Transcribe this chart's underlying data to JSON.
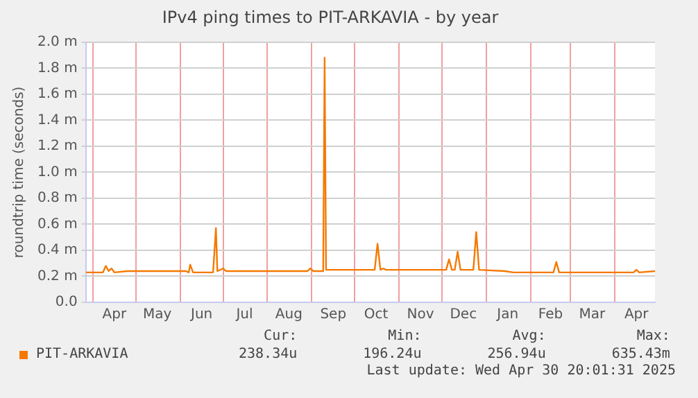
{
  "chart_data": {
    "type": "line",
    "title": "IPv4 ping times to PIT-ARKAVIA - by year",
    "ylabel": "roundtrip time (seconds)",
    "x": [
      "2024-03-27",
      "2024-04-08",
      "2024-04-10",
      "2024-04-12",
      "2024-04-14",
      "2024-04-16",
      "2024-04-25",
      "2024-06-05",
      "2024-06-07",
      "2024-06-08",
      "2024-06-10",
      "2024-06-24",
      "2024-06-26",
      "2024-06-27",
      "2024-07-01",
      "2024-07-03",
      "2024-08-29",
      "2024-08-31",
      "2024-09-02",
      "2024-09-09",
      "2024-09-10",
      "2024-09-11",
      "2024-10-15",
      "2024-10-17",
      "2024-10-19",
      "2024-10-21",
      "2024-10-23",
      "2024-12-04",
      "2024-12-06",
      "2024-12-08",
      "2024-12-10",
      "2024-12-12",
      "2024-12-14",
      "2024-12-23",
      "2024-12-25",
      "2024-12-27",
      "2025-01-14",
      "2025-01-20",
      "2025-02-17",
      "2025-02-19",
      "2025-02-21",
      "2025-04-14",
      "2025-04-16",
      "2025-04-18",
      "2025-04-29"
    ],
    "series": [
      {
        "name": "PIT-ARKAVIA",
        "color": "#f57900",
        "values": [
          0.23,
          0.23,
          0.28,
          0.24,
          0.26,
          0.23,
          0.24,
          0.24,
          0.23,
          0.29,
          0.23,
          0.23,
          0.57,
          0.24,
          0.26,
          0.24,
          0.24,
          0.26,
          0.24,
          0.24,
          1.88,
          0.25,
          0.25,
          0.45,
          0.25,
          0.26,
          0.25,
          0.25,
          0.33,
          0.25,
          0.25,
          0.39,
          0.25,
          0.25,
          0.54,
          0.25,
          0.24,
          0.23,
          0.23,
          0.31,
          0.23,
          0.23,
          0.25,
          0.23,
          0.24
        ]
      }
    ],
    "xlim": [
      "2024-03-27",
      "2025-04-29"
    ],
    "xticks": [
      {
        "value": "2024-04-01",
        "label": null
      },
      {
        "value": "2024-04-16",
        "label": "Apr"
      },
      {
        "value": "2024-05-01",
        "label": null
      },
      {
        "value": "2024-05-16",
        "label": "May"
      },
      {
        "value": "2024-06-01",
        "label": null
      },
      {
        "value": "2024-06-16",
        "label": "Jun"
      },
      {
        "value": "2024-07-01",
        "label": null
      },
      {
        "value": "2024-07-16",
        "label": "Jul"
      },
      {
        "value": "2024-08-01",
        "label": null
      },
      {
        "value": "2024-08-16",
        "label": "Aug"
      },
      {
        "value": "2024-09-01",
        "label": null
      },
      {
        "value": "2024-09-16",
        "label": "Sep"
      },
      {
        "value": "2024-10-01",
        "label": null
      },
      {
        "value": "2024-10-16",
        "label": "Oct"
      },
      {
        "value": "2024-11-01",
        "label": null
      },
      {
        "value": "2024-11-16",
        "label": "Nov"
      },
      {
        "value": "2024-12-01",
        "label": null
      },
      {
        "value": "2024-12-16",
        "label": "Dec"
      },
      {
        "value": "2025-01-01",
        "label": null
      },
      {
        "value": "2025-01-16",
        "label": "Jan"
      },
      {
        "value": "2025-02-01",
        "label": null
      },
      {
        "value": "2025-02-15",
        "label": "Feb"
      },
      {
        "value": "2025-03-01",
        "label": null
      },
      {
        "value": "2025-03-16",
        "label": "Mar"
      },
      {
        "value": "2025-04-01",
        "label": null
      },
      {
        "value": "2025-04-16",
        "label": "Apr"
      }
    ],
    "ylim": [
      0,
      2
    ],
    "yticks": [
      {
        "value": 0,
        "label": "0.0"
      },
      {
        "value": 0.2,
        "label": "0.2 m"
      },
      {
        "value": 0.4,
        "label": "0.4 m"
      },
      {
        "value": 0.6,
        "label": "0.6 m"
      },
      {
        "value": 0.8,
        "label": "0.8 m"
      },
      {
        "value": 1.0,
        "label": "1.0 m"
      },
      {
        "value": 1.2,
        "label": "1.2 m"
      },
      {
        "value": 1.4,
        "label": "1.4 m"
      },
      {
        "value": 1.6,
        "label": "1.6 m"
      },
      {
        "value": 1.8,
        "label": "1.8 m"
      },
      {
        "value": 2.0,
        "label": "2.0 m"
      }
    ],
    "grid": true,
    "legend": "bottom",
    "marker": "none",
    "line_style": "solid",
    "annotations": [
      "Cur:",
      "Min:",
      "Avg:",
      "Max:",
      "238.34u",
      "196.24u",
      "256.94u",
      "635.43m",
      "Last update: Wed Apr 30 20:01:31 2025"
    ]
  }
}
